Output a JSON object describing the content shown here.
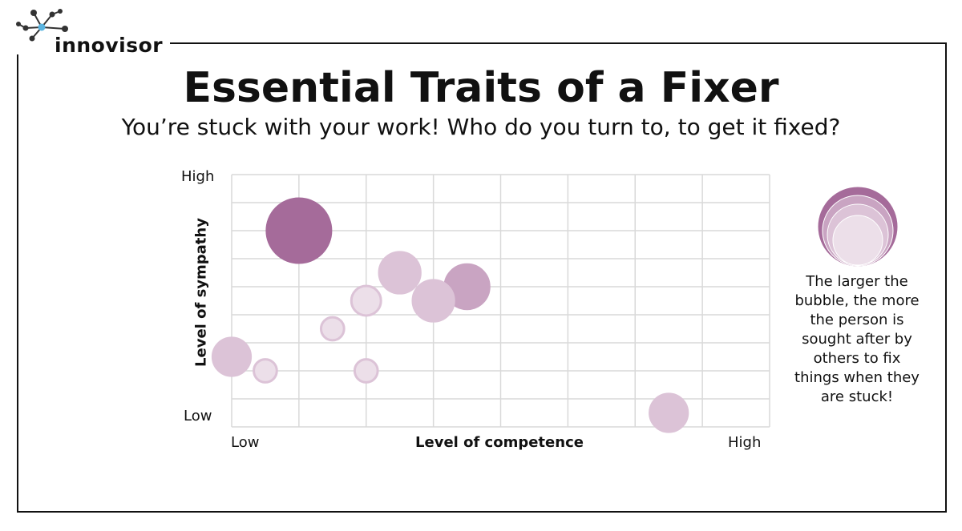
{
  "brand": {
    "name": "innovisor"
  },
  "header": {
    "title": "Essential Traits of a Fixer",
    "subtitle": "You’re stuck with your work! Who do you turn to, to get it fixed?"
  },
  "legend": {
    "text": "The larger the bubble, the more the person is sought after by others to fix things when they are stuck!"
  },
  "colors": {
    "dark": "#a56b9a",
    "medium": "#c9a4c2",
    "light": "#dcc3d7",
    "pale": "#ecdfe9",
    "grid": "#d9d9d9"
  },
  "chart_data": {
    "type": "bubble",
    "title": "Essential Traits of a Fixer",
    "xlabel": "Level of competence",
    "ylabel": "Level of sympathy",
    "x_ticks": {
      "low": "Low",
      "high": "High"
    },
    "y_ticks": {
      "low": "Low",
      "high": "High"
    },
    "xlim": [
      0,
      8
    ],
    "ylim": [
      0,
      9
    ],
    "grid": true,
    "points": [
      {
        "x": 1.0,
        "y": 7.0,
        "size": 10,
        "shade": "dark"
      },
      {
        "x": 2.5,
        "y": 5.5,
        "size": 6.5,
        "shade": "light"
      },
      {
        "x": 3.5,
        "y": 5.0,
        "size": 7,
        "shade": "medium"
      },
      {
        "x": 3.0,
        "y": 4.5,
        "size": 6.5,
        "shade": "light"
      },
      {
        "x": 2.0,
        "y": 4.5,
        "size": 4.5,
        "shade": "pale"
      },
      {
        "x": 1.5,
        "y": 3.5,
        "size": 3.5,
        "shade": "pale"
      },
      {
        "x": 0.0,
        "y": 2.5,
        "size": 6,
        "shade": "light"
      },
      {
        "x": 0.5,
        "y": 2.0,
        "size": 3.5,
        "shade": "pale"
      },
      {
        "x": 2.0,
        "y": 2.0,
        "size": 3.5,
        "shade": "pale"
      },
      {
        "x": 6.5,
        "y": 0.5,
        "size": 6,
        "shade": "light"
      }
    ]
  }
}
